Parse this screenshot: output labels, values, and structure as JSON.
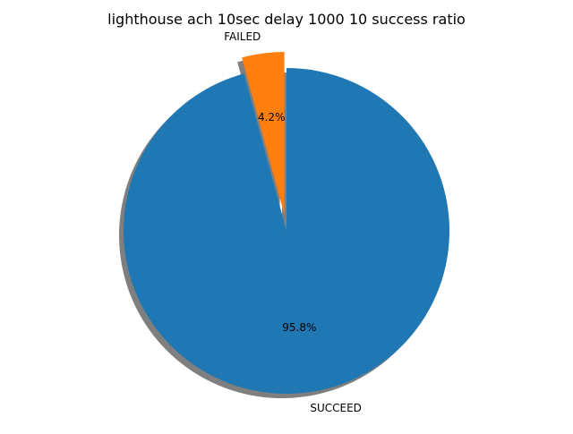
{
  "chart_data": {
    "type": "pie",
    "title": "lighthouse ach 10sec delay 1000 10 success ratio",
    "slices": [
      {
        "label": "FAILED",
        "value": 4.2,
        "pct_label": "4.2%",
        "color": "#ff7f0e",
        "exploded": true
      },
      {
        "label": "SUCCEED",
        "value": 95.8,
        "pct_label": "95.8%",
        "color": "#1f77b4",
        "exploded": false
      }
    ],
    "start_angle_deg": 90,
    "direction": "counterclockwise",
    "shadow": true,
    "legend": "none"
  }
}
